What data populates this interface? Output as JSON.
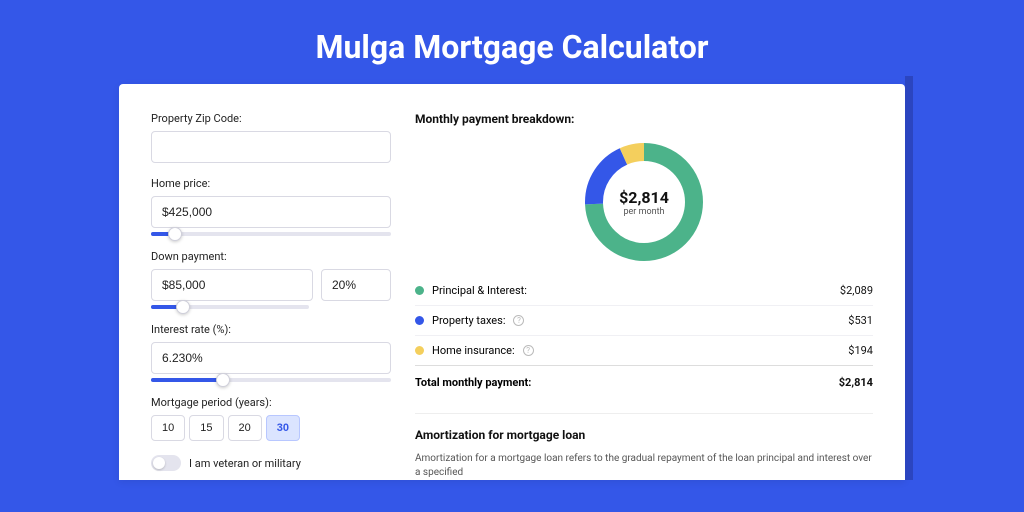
{
  "page": {
    "title": "Mulga Mortgage Calculator",
    "bg_color": "#3457e8"
  },
  "form": {
    "zip": {
      "label": "Property Zip Code:",
      "value": ""
    },
    "home_price": {
      "label": "Home price:",
      "value": "$425,000",
      "slider_pct": 10
    },
    "down_payment": {
      "label": "Down payment:",
      "amount": "$85,000",
      "percent": "20%",
      "slider_pct": 20
    },
    "interest": {
      "label": "Interest rate (%):",
      "value": "6.230%",
      "slider_pct": 30
    },
    "period": {
      "label": "Mortgage period (years):",
      "options": [
        "10",
        "15",
        "20",
        "30"
      ],
      "selected": "30"
    },
    "veteran": {
      "label": "I am veteran or military",
      "checked": false
    }
  },
  "breakdown": {
    "heading": "Monthly payment breakdown:",
    "donut": {
      "amount": "$2,814",
      "sub": "per month",
      "slices": [
        {
          "key": "principal_interest",
          "value": 2089,
          "color": "#4cb38a"
        },
        {
          "key": "property_taxes",
          "value": 531,
          "color": "#3457e8"
        },
        {
          "key": "home_insurance",
          "value": 194,
          "color": "#f4cf5d"
        }
      ],
      "stroke_width": 18
    },
    "rows": [
      {
        "dot": "#4cb38a",
        "label": "Principal & Interest:",
        "info": false,
        "value": "$2,089"
      },
      {
        "dot": "#3457e8",
        "label": "Property taxes:",
        "info": true,
        "value": "$531"
      },
      {
        "dot": "#f4cf5d",
        "label": "Home insurance:",
        "info": true,
        "value": "$194"
      }
    ],
    "total": {
      "label": "Total monthly payment:",
      "value": "$2,814"
    }
  },
  "amortization": {
    "title": "Amortization for mortgage loan",
    "text": "Amortization for a mortgage loan refers to the gradual repayment of the loan principal and interest over a specified"
  }
}
